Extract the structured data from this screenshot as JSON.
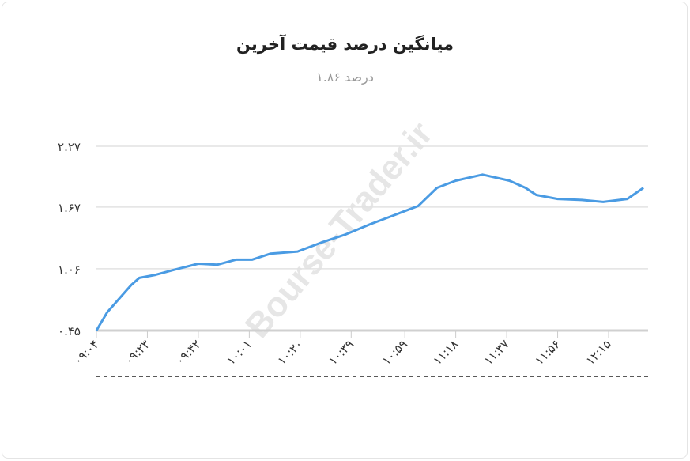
{
  "chart_data": {
    "type": "line",
    "title": "میانگین درصد قیمت آخرین",
    "subtitle": "درصد ۱.۸۶",
    "xlabel": "",
    "ylabel": "",
    "ylim": [
      0.45,
      2.27
    ],
    "y_ticks": [
      0.45,
      1.06,
      1.67,
      2.27
    ],
    "y_tick_labels": [
      "۰.۴۵",
      "۱.۰۶",
      "۱.۶۷",
      "۲.۲۷"
    ],
    "x_tick_values": [
      "09:04",
      "09:23",
      "09:42",
      "10:01",
      "10:20",
      "10:39",
      "10:59",
      "11:18",
      "11:37",
      "11:56",
      "12:15"
    ],
    "x_tick_labels": [
      "۰۹:۰۴",
      "۰۹:۲۳",
      "۰۹:۴۲",
      "۱۰:۰۱",
      "۱۰:۲۰",
      "۱۰:۳۹",
      "۱۰:۵۹",
      "۱۱:۱۸",
      "۱۱:۳۷",
      "۱۱:۵۶",
      "۱۲:۱۵"
    ],
    "grid": true,
    "line_color": "#4a9be3",
    "series": [
      {
        "x": [
          "09:04",
          "09:08",
          "09:12",
          "09:17",
          "09:20",
          "09:26",
          "09:33",
          "09:42",
          "09:49",
          "09:56",
          "10:02",
          "10:09",
          "10:19",
          "10:28",
          "10:37",
          "10:46",
          "10:55",
          "11:04",
          "11:11",
          "11:18",
          "11:28",
          "11:38",
          "11:44",
          "11:48",
          "11:56",
          "12:05",
          "12:13",
          "12:22",
          "12:28"
        ],
        "values": [
          0.45,
          0.63,
          0.75,
          0.9,
          0.97,
          1.0,
          1.05,
          1.11,
          1.1,
          1.15,
          1.15,
          1.21,
          1.23,
          1.32,
          1.4,
          1.5,
          1.59,
          1.68,
          1.86,
          1.93,
          1.99,
          1.93,
          1.86,
          1.79,
          1.75,
          1.74,
          1.72,
          1.75,
          1.86
        ]
      }
    ]
  },
  "watermark": "Bourse-Trader.ir"
}
